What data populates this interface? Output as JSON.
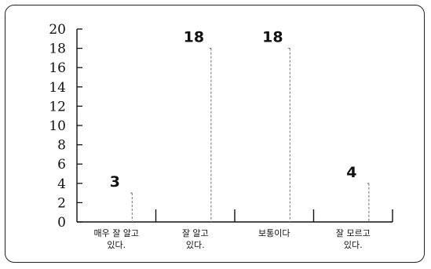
{
  "chart_data": {
    "type": "bar",
    "categories": [
      [
        "매우 잘 알고",
        "있다."
      ],
      [
        "잘 알고",
        "있다."
      ],
      [
        "보통이다"
      ],
      [
        "잘 모르고",
        "있다."
      ]
    ],
    "values": [
      3,
      18,
      18,
      4
    ],
    "data_labels": [
      "3",
      "18",
      "18",
      "4"
    ],
    "y_ticks": [
      "0",
      "2",
      "4",
      "6",
      "8",
      "10",
      "12",
      "14",
      "16",
      "18",
      "20"
    ],
    "ylim": [
      0,
      20
    ],
    "title": "",
    "xlabel": "",
    "ylabel": "",
    "grid": false,
    "bar_color": "#888888"
  }
}
